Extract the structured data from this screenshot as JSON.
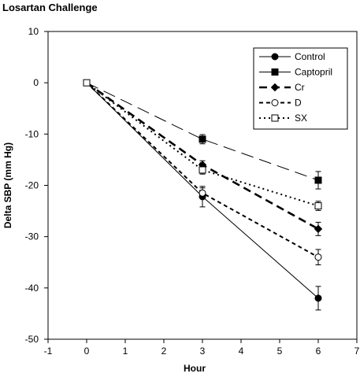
{
  "chart_data": {
    "type": "line",
    "title": "Losartan Challenge",
    "xlabel": "Hour",
    "ylabel": "Delta SBP (mm Hg)",
    "xlim": [
      -1,
      7
    ],
    "ylim": [
      -50,
      10
    ],
    "xticks": [
      -1,
      0,
      1,
      2,
      3,
      4,
      5,
      6,
      7
    ],
    "yticks": [
      10,
      0,
      -10,
      -20,
      -30,
      -40,
      -50
    ],
    "grid": false,
    "legend_position": "top-right",
    "x": [
      0,
      3,
      6
    ],
    "series": [
      {
        "name": "Control",
        "values": [
          0,
          -22.2,
          -42
        ],
        "errors": [
          0,
          2.0,
          2.3
        ],
        "marker": "filled-circle",
        "line": "solid",
        "color": "#000000"
      },
      {
        "name": "Captopril",
        "values": [
          0,
          -11,
          -19
        ],
        "errors": [
          0,
          0.9,
          1.7
        ],
        "marker": "filled-square",
        "line": "long-dash",
        "color": "#000000"
      },
      {
        "name": "Cr",
        "values": [
          0,
          -16,
          -28.5
        ],
        "errors": [
          0,
          0.8,
          1.3
        ],
        "marker": "filled-diamond",
        "line": "bold-dash",
        "color": "#000000"
      },
      {
        "name": "D",
        "values": [
          0,
          -21.5,
          -34
        ],
        "errors": [
          0,
          1.0,
          1.5
        ],
        "marker": "open-circle",
        "line": "short-dash",
        "color": "#000000"
      },
      {
        "name": "SX",
        "values": [
          0,
          -17,
          -24
        ],
        "errors": [
          0,
          0.8,
          0.9
        ],
        "marker": "open-square",
        "line": "dotted",
        "color": "#000000"
      }
    ]
  }
}
